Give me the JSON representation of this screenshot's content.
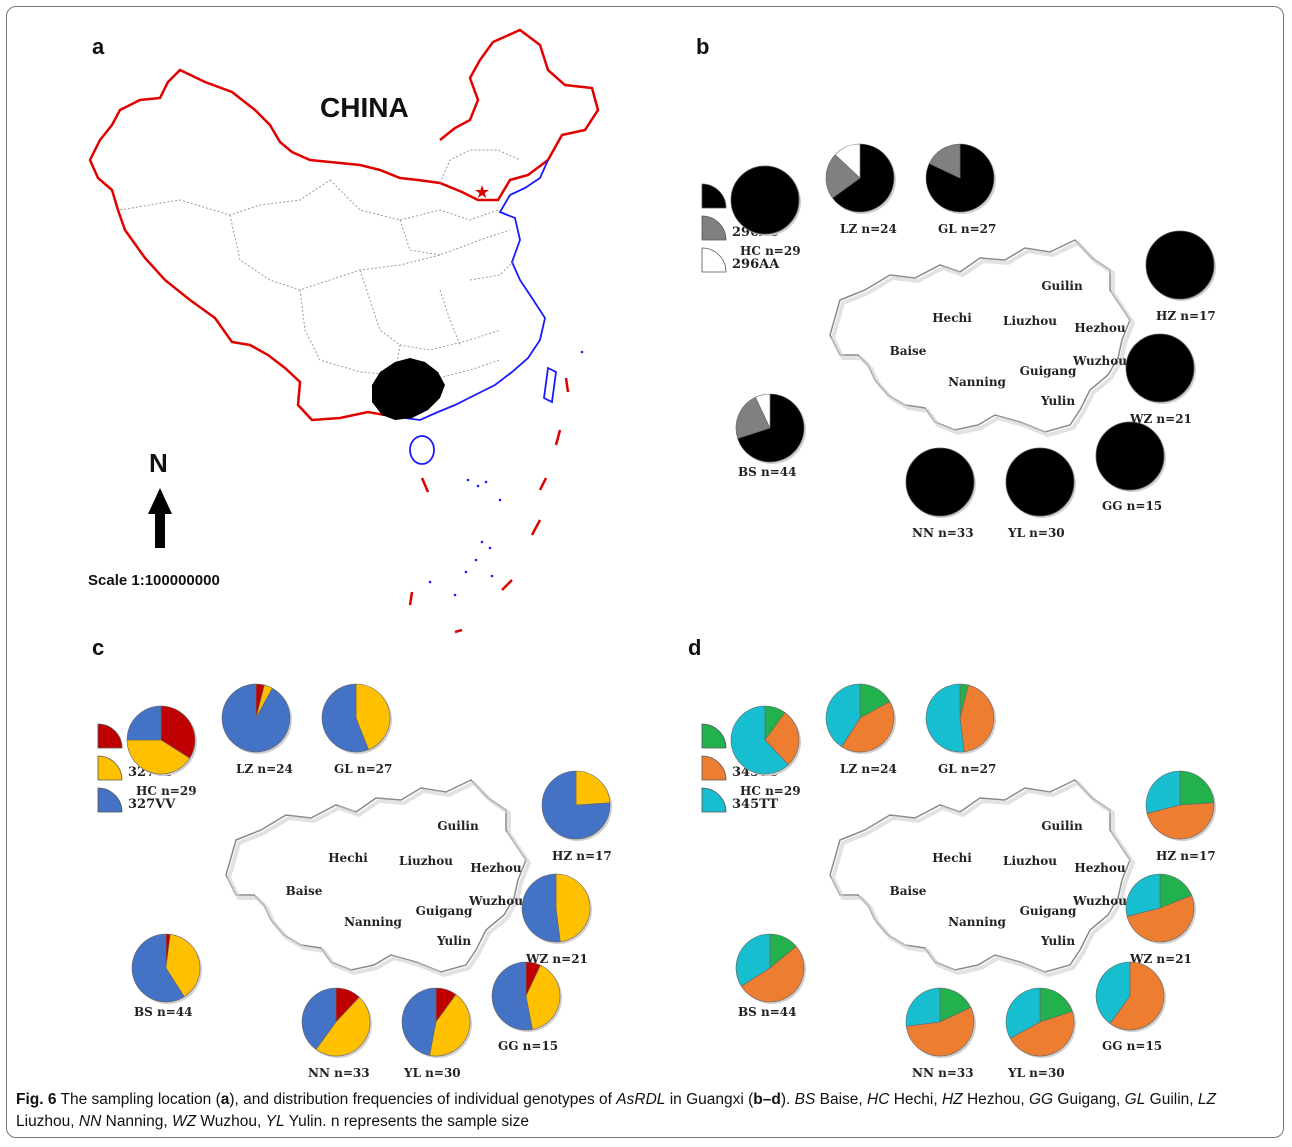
{
  "panels": {
    "a": {
      "letter": "a",
      "country_label": "CHINA",
      "north_label": "N",
      "scale_label": "Scale 1:100000000"
    },
    "b": {
      "letter": "b",
      "legend": [
        {
          "label": "296SS",
          "color": "#000000"
        },
        {
          "label": "296AS",
          "color": "#808080"
        },
        {
          "label": "296AA",
          "color": "#ffffff"
        }
      ]
    },
    "c": {
      "letter": "c",
      "legend": [
        {
          "label": "327II",
          "color": "#c00000"
        },
        {
          "label": "327VI",
          "color": "#ffc000"
        },
        {
          "label": "327VV",
          "color": "#4472c4"
        }
      ]
    },
    "d": {
      "letter": "d",
      "legend": [
        {
          "label": "345SS",
          "color": "#22b14c"
        },
        {
          "label": "345TS",
          "color": "#ed7d31"
        },
        {
          "label": "345TT",
          "color": "#17becf"
        }
      ]
    }
  },
  "map_cities": [
    "Guilin",
    "Hechi",
    "Liuzhou",
    "Hezhou",
    "Baise",
    "Wuzhou",
    "Guigang",
    "Nanning",
    "Yulin"
  ],
  "chart_data": [
    {
      "type": "pie",
      "panel": "b",
      "categories": [
        "296SS",
        "296AS",
        "296AA"
      ],
      "series": [
        {
          "name": "HC n=29",
          "values": [
            1.0,
            0.0,
            0.0
          ]
        },
        {
          "name": "LZ n=24",
          "values": [
            0.65,
            0.22,
            0.13
          ]
        },
        {
          "name": "GL n=27",
          "values": [
            0.82,
            0.18,
            0.0
          ]
        },
        {
          "name": "HZ n=17",
          "values": [
            1.0,
            0.0,
            0.0
          ]
        },
        {
          "name": "WZ n=21",
          "values": [
            1.0,
            0.0,
            0.0
          ]
        },
        {
          "name": "GG n=15",
          "values": [
            1.0,
            0.0,
            0.0
          ]
        },
        {
          "name": "YL n=30",
          "values": [
            1.0,
            0.0,
            0.0
          ]
        },
        {
          "name": "NN n=33",
          "values": [
            1.0,
            0.0,
            0.0
          ]
        },
        {
          "name": "BS n=44",
          "values": [
            0.7,
            0.23,
            0.07
          ]
        }
      ]
    },
    {
      "type": "pie",
      "panel": "c",
      "categories": [
        "327II",
        "327VI",
        "327VV"
      ],
      "series": [
        {
          "name": "HC n=29",
          "values": [
            0.34,
            0.41,
            0.25
          ]
        },
        {
          "name": "LZ n=24",
          "values": [
            0.04,
            0.04,
            0.92
          ]
        },
        {
          "name": "GL n=27",
          "values": [
            0.0,
            0.44,
            0.56
          ]
        },
        {
          "name": "HZ n=17",
          "values": [
            0.0,
            0.24,
            0.76
          ]
        },
        {
          "name": "WZ n=21",
          "values": [
            0.0,
            0.48,
            0.52
          ]
        },
        {
          "name": "GG n=15",
          "values": [
            0.07,
            0.4,
            0.53
          ]
        },
        {
          "name": "YL n=30",
          "values": [
            0.1,
            0.43,
            0.47
          ]
        },
        {
          "name": "NN n=33",
          "values": [
            0.12,
            0.48,
            0.4
          ]
        },
        {
          "name": "BS n=44",
          "values": [
            0.02,
            0.39,
            0.59
          ]
        }
      ]
    },
    {
      "type": "pie",
      "panel": "d",
      "categories": [
        "345SS",
        "345TS",
        "345TT"
      ],
      "series": [
        {
          "name": "HC n=29",
          "values": [
            0.1,
            0.28,
            0.62
          ]
        },
        {
          "name": "LZ n=24",
          "values": [
            0.17,
            0.42,
            0.41
          ]
        },
        {
          "name": "GL n=27",
          "values": [
            0.04,
            0.44,
            0.52
          ]
        },
        {
          "name": "HZ n=17",
          "values": [
            0.24,
            0.47,
            0.29
          ]
        },
        {
          "name": "WZ n=21",
          "values": [
            0.19,
            0.52,
            0.29
          ]
        },
        {
          "name": "GG n=15",
          "values": [
            0.0,
            0.6,
            0.4
          ]
        },
        {
          "name": "YL n=30",
          "values": [
            0.2,
            0.47,
            0.33
          ]
        },
        {
          "name": "NN n=33",
          "values": [
            0.18,
            0.55,
            0.27
          ]
        },
        {
          "name": "BS n=44",
          "values": [
            0.14,
            0.52,
            0.34
          ]
        }
      ]
    }
  ],
  "caption": {
    "fig_label": "Fig. 6",
    "text_1": " The sampling location (",
    "a": "a",
    "text_2": "), and distribution frequencies of individual genotypes of ",
    "gene": "AsRDL",
    "text_3": " in Guangxi (",
    "bd": "b–d",
    "text_4": "). ",
    "abbrevs": [
      {
        "code": "BS",
        "name": " Baise, "
      },
      {
        "code": "HC",
        "name": " Hechi, "
      },
      {
        "code": "HZ",
        "name": " Hezhou, "
      },
      {
        "code": "GG",
        "name": " Guigang, "
      },
      {
        "code": "GL",
        "name": " Guilin, "
      },
      {
        "code": "LZ",
        "name": " Liuzhou, "
      },
      {
        "code": "NN",
        "name": " Nanning, "
      },
      {
        "code": "WZ",
        "name": " Wuzhou, "
      },
      {
        "code": "YL",
        "name": " Yulin. "
      }
    ],
    "tail": "n represents the sample size"
  }
}
